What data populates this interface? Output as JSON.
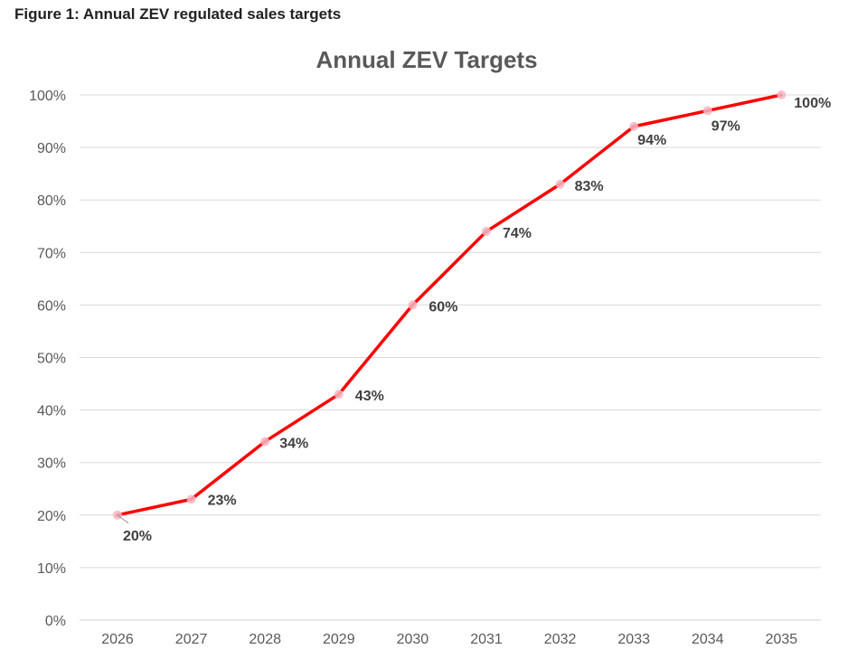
{
  "figure_caption": "Figure 1: Annual ZEV regulated sales targets",
  "chart_data": {
    "type": "line",
    "title": "Annual ZEV Targets",
    "xlabel": "",
    "ylabel": "",
    "categories": [
      "2026",
      "2027",
      "2028",
      "2029",
      "2030",
      "2031",
      "2032",
      "2033",
      "2034",
      "2035"
    ],
    "series": [
      {
        "values": [
          20,
          23,
          34,
          43,
          60,
          74,
          83,
          94,
          97,
          100
        ],
        "color": "#ff0000"
      }
    ],
    "data_labels": [
      "20%",
      "23%",
      "34%",
      "43%",
      "60%",
      "74%",
      "83%",
      "94%",
      "97%",
      "100%"
    ],
    "ylim": [
      0,
      100
    ],
    "yticks": [
      "0%",
      "10%",
      "20%",
      "30%",
      "40%",
      "50%",
      "60%",
      "70%",
      "80%",
      "90%",
      "100%"
    ],
    "grid": true,
    "marker_color": "#f4b6c2"
  }
}
